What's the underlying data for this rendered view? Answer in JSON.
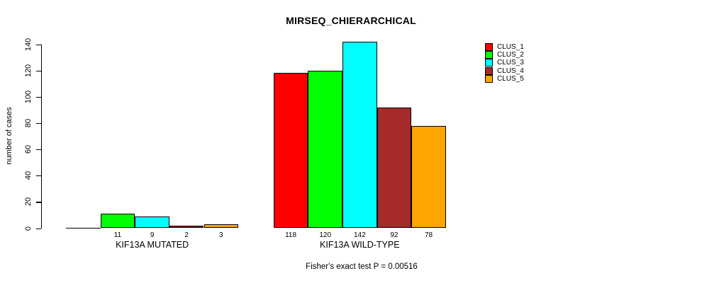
{
  "chart_data": {
    "type": "bar",
    "title": "MIRSEQ_CHIERARCHICAL",
    "ylabel": "number of cases",
    "xlabel": "",
    "annotation": "Fisher's exact test P = 0.00516",
    "categories": [
      "KIF13A MUTATED",
      "KIF13A WILD-TYPE"
    ],
    "series": [
      {
        "name": "CLUS_1",
        "color": "#FF0000",
        "values": [
          0,
          118
        ]
      },
      {
        "name": "CLUS_2",
        "color": "#00FF00",
        "values": [
          11,
          120
        ]
      },
      {
        "name": "CLUS_3",
        "color": "#00FFFF",
        "values": [
          9,
          142
        ]
      },
      {
        "name": "CLUS_4",
        "color": "#A52A2A",
        "values": [
          2,
          92
        ]
      },
      {
        "name": "CLUS_5",
        "color": "#FFA500",
        "values": [
          3,
          78
        ]
      }
    ],
    "yticks": [
      0,
      20,
      40,
      60,
      80,
      100,
      120,
      140
    ],
    "ylim": [
      0,
      145
    ],
    "grid": false,
    "legend_position": "right",
    "bar_border_color": "#000000",
    "axis_color": "#000000",
    "background": "#FFFFFF",
    "value_label_rule": "bar values shown under each bar; hidden when value is 0"
  }
}
